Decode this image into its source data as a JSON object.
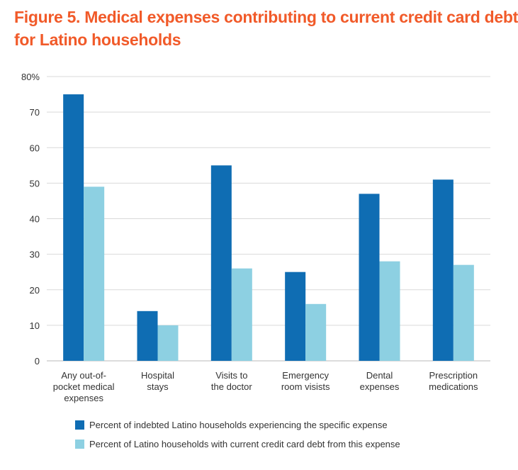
{
  "title": {
    "line1": "Figure 5. Medical expenses contributing to current credit card debt",
    "line2": "for Latino households"
  },
  "colors": {
    "title": "#f15a29",
    "series1": "#0f6db3",
    "series2": "#8dd0e2",
    "grid": "#d9d9d9",
    "axis_text": "#333333"
  },
  "chart_data": {
    "type": "bar",
    "title": "Figure 5. Medical expenses contributing to current credit card debt for Latino households",
    "xlabel": "",
    "ylabel": "",
    "ylim": [
      0,
      80
    ],
    "yticks": [
      "0",
      "10",
      "20",
      "30",
      "40",
      "50",
      "60",
      "70",
      "80%"
    ],
    "grid": true,
    "legend_position": "bottom",
    "categories": [
      [
        "Any out-of-",
        "pocket medical",
        "expenses"
      ],
      [
        "Hospital",
        "stays"
      ],
      [
        "Visits to",
        "the doctor"
      ],
      [
        "Emergency",
        "room visists"
      ],
      [
        "Dental",
        "expenses"
      ],
      [
        "Prescription",
        "medications"
      ]
    ],
    "series": [
      {
        "name": "Percent of indebted Latino households experiencing the specific expense",
        "color": "#0f6db3",
        "values": [
          75,
          14,
          55,
          25,
          47,
          51
        ]
      },
      {
        "name": "Percent of Latino households with current credit card debt from this expense",
        "color": "#8dd0e2",
        "values": [
          49,
          10,
          26,
          16,
          28,
          27
        ]
      }
    ]
  }
}
